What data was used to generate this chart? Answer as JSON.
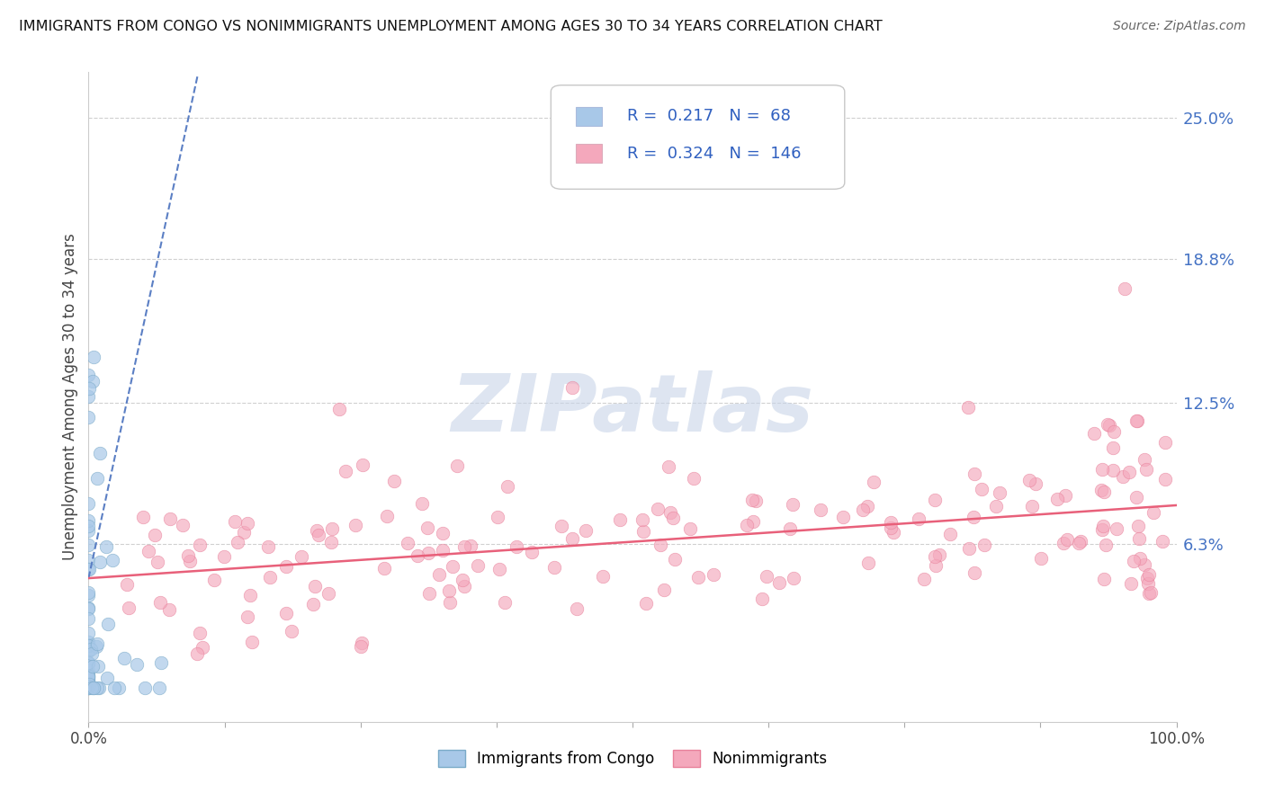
{
  "title": "IMMIGRANTS FROM CONGO VS NONIMMIGRANTS UNEMPLOYMENT AMONG AGES 30 TO 34 YEARS CORRELATION CHART",
  "source": "Source: ZipAtlas.com",
  "ylabel_label": "Unemployment Among Ages 30 to 34 years",
  "right_yticklabels": [
    "6.3%",
    "12.5%",
    "18.8%",
    "25.0%"
  ],
  "right_ytick_vals": [
    0.063,
    0.125,
    0.188,
    0.25
  ],
  "xlim": [
    0.0,
    1.0
  ],
  "ylim": [
    -0.015,
    0.27
  ],
  "legend_items": [
    {
      "label": "Immigrants from Congo",
      "R": "0.217",
      "N": "68",
      "color": "#a8c8e8"
    },
    {
      "label": "Nonimmigrants",
      "R": "0.324",
      "N": "146",
      "color": "#f4a8bc"
    }
  ],
  "background_color": "#ffffff",
  "grid_color": "#d0d0d0",
  "blue_dot_color": "#a8c8e8",
  "blue_dot_edge": "#7aaac8",
  "pink_dot_color": "#f4a8bc",
  "pink_dot_edge": "#e8809a",
  "blue_line_color": "#5b7fc4",
  "pink_line_color": "#e8607a",
  "blue_trend_intercept": 0.048,
  "blue_trend_slope": 2.2,
  "pink_trend_intercept": 0.048,
  "pink_trend_slope": 0.032,
  "watermark_text": "ZIPatlas",
  "watermark_color": "#c8d4e8",
  "xtick_positions": [
    0.0,
    0.125,
    0.25,
    0.375,
    0.5,
    0.625,
    0.75,
    0.875,
    1.0
  ],
  "xtick_labels": [
    "0.0%",
    "",
    "",
    "",
    "",
    "",
    "",
    "",
    "100.0%"
  ]
}
